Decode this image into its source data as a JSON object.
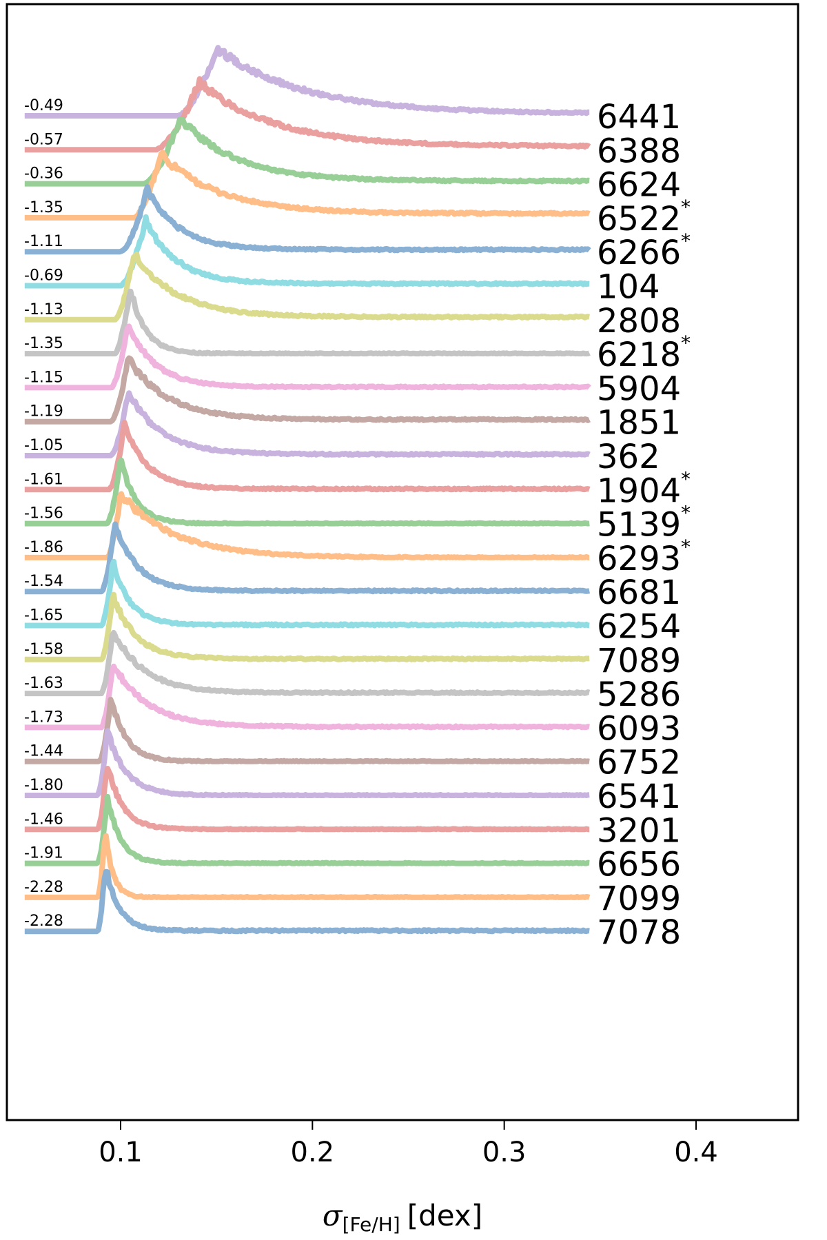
{
  "chart_data": {
    "type": "line",
    "xlabel": "σ[Fe/H] [dex]",
    "xlabel_symbol": "σ",
    "xlabel_subscript": "[Fe/H]",
    "xlabel_unit": "[dex]",
    "xlim": [
      0.045,
      0.4
    ],
    "xticks": [
      0.1,
      0.2,
      0.3,
      0.4
    ],
    "xtick_labels": [
      "0.1",
      "0.2",
      "0.3",
      "0.4"
    ],
    "x_range": [
      0.05,
      0.345
    ],
    "grid": false,
    "legend": "none",
    "series": [
      {
        "name": "6441",
        "feh": "-0.49",
        "flag": "",
        "color": "#c7b3de",
        "peak_x": 0.15,
        "start_x": 0.13,
        "peak_h": 98,
        "tail_h": 3,
        "decay": 0.045
      },
      {
        "name": "6388",
        "feh": "-0.57",
        "flag": "",
        "color": "#eba0a0",
        "peak_x": 0.141,
        "start_x": 0.118,
        "peak_h": 98,
        "tail_h": 5,
        "decay": 0.038
      },
      {
        "name": "6624",
        "feh": "-0.36",
        "flag": "",
        "color": "#97cf97",
        "peak_x": 0.131,
        "start_x": 0.112,
        "peak_h": 96,
        "tail_h": 4,
        "decay": 0.028
      },
      {
        "name": "6522",
        "feh": "-1.35",
        "flag": "*",
        "color": "#ffbe88",
        "peak_x": 0.121,
        "start_x": 0.107,
        "peak_h": 92,
        "tail_h": 6,
        "decay": 0.03
      },
      {
        "name": "6266",
        "feh": "-1.11",
        "flag": "*",
        "color": "#8ab1d4",
        "peak_x": 0.114,
        "start_x": 0.1,
        "peak_h": 92,
        "tail_h": 3,
        "decay": 0.016
      },
      {
        "name": "104",
        "feh": "-0.69",
        "flag": "",
        "color": "#8fdde3",
        "peak_x": 0.113,
        "start_x": 0.1,
        "peak_h": 96,
        "tail_h": 3,
        "decay": 0.016
      },
      {
        "name": "2808",
        "feh": "-1.13",
        "flag": "",
        "color": "#dbdb8e",
        "peak_x": 0.107,
        "start_x": 0.097,
        "peak_h": 96,
        "tail_h": 4,
        "decay": 0.022
      },
      {
        "name": "6218",
        "feh": "-1.35",
        "flag": "*",
        "color": "#c4c4c4",
        "peak_x": 0.105,
        "start_x": 0.097,
        "peak_h": 96,
        "tail_h": 0,
        "decay": 0.008
      },
      {
        "name": "5904",
        "feh": "-1.15",
        "flag": "",
        "color": "#f0b3de",
        "peak_x": 0.104,
        "start_x": 0.095,
        "peak_h": 92,
        "tail_h": 1,
        "decay": 0.014
      },
      {
        "name": "1851",
        "feh": "-1.19",
        "flag": "",
        "color": "#c3a8a4",
        "peak_x": 0.104,
        "start_x": 0.095,
        "peak_h": 92,
        "tail_h": 3,
        "decay": 0.02
      },
      {
        "name": "362",
        "feh": "-1.05",
        "flag": "",
        "color": "#c7b3de",
        "peak_x": 0.104,
        "start_x": 0.095,
        "peak_h": 92,
        "tail_h": 2,
        "decay": 0.017
      },
      {
        "name": "1904",
        "feh": "-1.61",
        "flag": "*",
        "color": "#eba0a0",
        "peak_x": 0.102,
        "start_x": 0.094,
        "peak_h": 94,
        "tail_h": 1,
        "decay": 0.012
      },
      {
        "name": "5139",
        "feh": "-1.56",
        "flag": "*",
        "color": "#97cf97",
        "peak_x": 0.1,
        "start_x": 0.093,
        "peak_h": 94,
        "tail_h": 0,
        "decay": 0.008
      },
      {
        "name": "6293",
        "feh": "-1.86",
        "flag": "*",
        "color": "#ffbe88",
        "peak_x": 0.1,
        "start_x": 0.093,
        "peak_h": 92,
        "tail_h": 0,
        "decay": 0.028
      },
      {
        "name": "6681",
        "feh": "-1.54",
        "flag": "",
        "color": "#8ab1d4",
        "peak_x": 0.097,
        "start_x": 0.09,
        "peak_h": 96,
        "tail_h": 1,
        "decay": 0.012
      },
      {
        "name": "6254",
        "feh": "-1.65",
        "flag": "",
        "color": "#8fdde3",
        "peak_x": 0.096,
        "start_x": 0.09,
        "peak_h": 92,
        "tail_h": 1,
        "decay": 0.009
      },
      {
        "name": "7089",
        "feh": "-1.58",
        "flag": "",
        "color": "#dbdb8e",
        "peak_x": 0.096,
        "start_x": 0.09,
        "peak_h": 92,
        "tail_h": 1,
        "decay": 0.012
      },
      {
        "name": "5286",
        "feh": "-1.63",
        "flag": "",
        "color": "#c4c4c4",
        "peak_x": 0.096,
        "start_x": 0.09,
        "peak_h": 92,
        "tail_h": 1,
        "decay": 0.016
      },
      {
        "name": "6093",
        "feh": "-1.73",
        "flag": "",
        "color": "#f0b3de",
        "peak_x": 0.096,
        "start_x": 0.09,
        "peak_h": 92,
        "tail_h": 1,
        "decay": 0.018
      },
      {
        "name": "6752",
        "feh": "-1.44",
        "flag": "",
        "color": "#c3a8a4",
        "peak_x": 0.095,
        "start_x": 0.089,
        "peak_h": 92,
        "tail_h": 0,
        "decay": 0.008
      },
      {
        "name": "6541",
        "feh": "-1.80",
        "flag": "",
        "color": "#c7b3de",
        "peak_x": 0.093,
        "start_x": 0.088,
        "peak_h": 94,
        "tail_h": 0,
        "decay": 0.01
      },
      {
        "name": "3201",
        "feh": "-1.46",
        "flag": "",
        "color": "#eba0a0",
        "peak_x": 0.093,
        "start_x": 0.088,
        "peak_h": 94,
        "tail_h": 0,
        "decay": 0.008
      },
      {
        "name": "6656",
        "feh": "-1.91",
        "flag": "",
        "color": "#97cf97",
        "peak_x": 0.093,
        "start_x": 0.088,
        "peak_h": 96,
        "tail_h": 0,
        "decay": 0.007
      },
      {
        "name": "7099",
        "feh": "-2.28",
        "flag": "",
        "color": "#ffbe88",
        "peak_x": 0.092,
        "start_x": 0.088,
        "peak_h": 96,
        "tail_h": 0,
        "decay": 0.004
      },
      {
        "name": "7078",
        "feh": "-2.28",
        "flag": "",
        "color": "#8ab1d4",
        "peak_x": 0.092,
        "start_x": 0.088,
        "peak_h": 96,
        "tail_h": 1,
        "decay": 0.007
      }
    ]
  }
}
